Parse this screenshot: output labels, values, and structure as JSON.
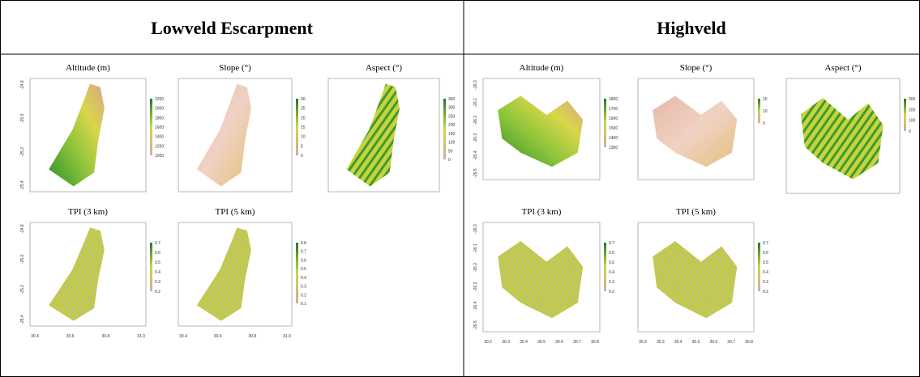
{
  "columns": [
    {
      "title": "Lowveld Escarpment",
      "x_ticks": [
        "30.4",
        "30.6",
        "30.8",
        "31.0"
      ],
      "y_ticks": [
        "-24.8",
        "-25.0",
        "-25.2",
        "-25.4"
      ],
      "panels": [
        {
          "title": "Altitude (m)",
          "legend": [
            "2200",
            "2000",
            "1800",
            "1600",
            "1400",
            "1200",
            "1000"
          ]
        },
        {
          "title": "Slope (°)",
          "legend": [
            "30",
            "25",
            "20",
            "15",
            "10",
            "5",
            "0"
          ]
        },
        {
          "title": "Aspect (°)",
          "legend": [
            "350",
            "300",
            "250",
            "200",
            "150",
            "100",
            "50",
            "0"
          ]
        },
        {
          "title": "TPI (3 km)",
          "legend": [
            "0.7",
            "0.6",
            "0.5",
            "0.4",
            "0.3",
            "0.2"
          ]
        },
        {
          "title": "TPI (5 km)",
          "legend": [
            "0.8",
            "0.7",
            "0.6",
            "0.5",
            "0.4",
            "0.3",
            "0.2",
            "0.1"
          ]
        }
      ]
    },
    {
      "title": "Highveld",
      "x_ticks": [
        "30.2",
        "30.3",
        "30.4",
        "30.5",
        "30.6",
        "30.7",
        "30.8"
      ],
      "y_ticks": [
        "-26.0",
        "-26.1",
        "-26.2",
        "-26.3",
        "-26.4",
        "-26.5"
      ],
      "panels": [
        {
          "title": "Altitude (m)",
          "legend": [
            "1800",
            "1700",
            "1600",
            "1500",
            "1400",
            "1300"
          ]
        },
        {
          "title": "Slope (°)",
          "legend": [
            "15",
            "10",
            "5"
          ]
        },
        {
          "title": "Aspect (°)",
          "legend": [
            "300",
            "200",
            "100",
            "0"
          ]
        },
        {
          "title": "TPI (3 km)",
          "legend": [
            "0.7",
            "0.6",
            "0.5",
            "0.4",
            "0.3",
            "0.2"
          ]
        },
        {
          "title": "TPI (5 km)",
          "legend": [
            "0.7",
            "0.6",
            "0.5",
            "0.4",
            "0.3",
            "0.2"
          ]
        }
      ]
    }
  ]
}
